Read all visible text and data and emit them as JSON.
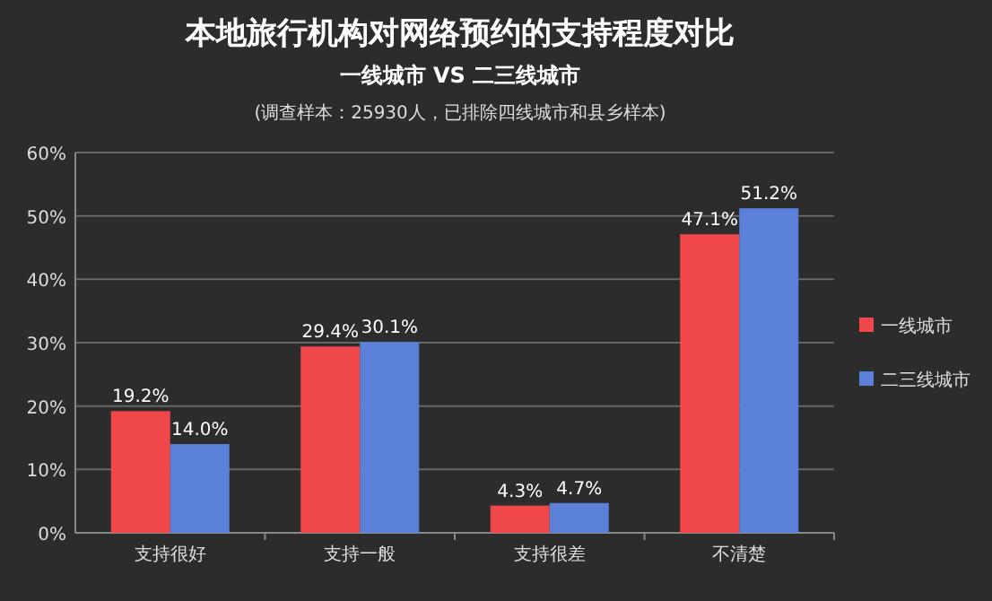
{
  "chart_data": {
    "type": "bar",
    "title": "本地旅行机构对网络预约的支持程度对比",
    "subtitle": "一线城市 VS 二三线城市",
    "annotations": [
      "(调查样本：25930人，已排除四线城市和县乡样本)"
    ],
    "categories": [
      "支持很好",
      "支持一般",
      "支持很差",
      "不清楚"
    ],
    "series": [
      {
        "name": "一线城市",
        "color": "#f0484a",
        "values": [
          19.2,
          29.4,
          4.3,
          47.1
        ],
        "value_labels": [
          "19.2%",
          "29.4%",
          "4.3%",
          "47.1%"
        ]
      },
      {
        "name": "二三线城市",
        "color": "#5b80d8",
        "values": [
          14.0,
          30.1,
          4.7,
          51.2
        ],
        "value_labels": [
          "14.0%",
          "30.1%",
          "4.7%",
          "51.2%"
        ]
      }
    ],
    "ylim": [
      0,
      60
    ],
    "yticks": [
      {
        "value": 0,
        "label": "0%"
      },
      {
        "value": 10,
        "label": "10%"
      },
      {
        "value": 20,
        "label": "20%"
      },
      {
        "value": 30,
        "label": "30%"
      },
      {
        "value": 40,
        "label": "40%"
      },
      {
        "value": 50,
        "label": "50%"
      },
      {
        "value": 60,
        "label": "60%"
      }
    ],
    "grid": "y",
    "legend": "right"
  }
}
